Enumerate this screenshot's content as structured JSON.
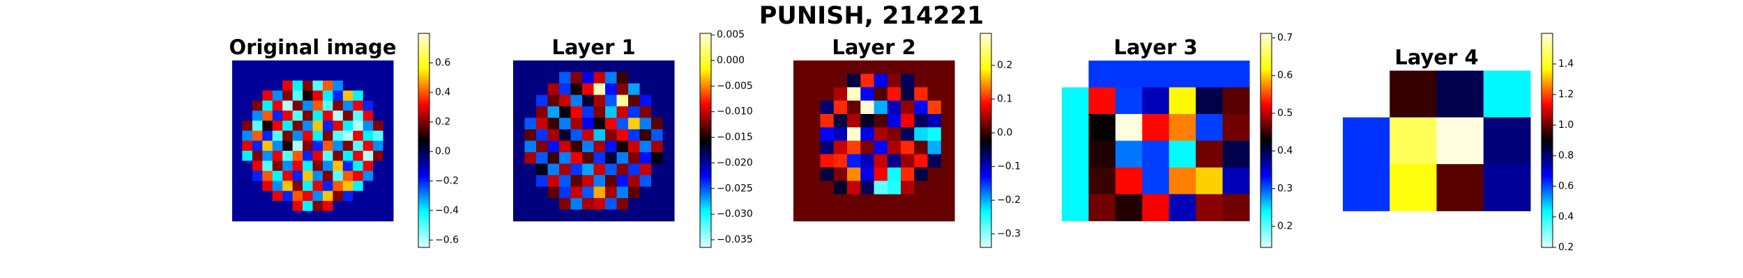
{
  "title": "PUNISH, 214221",
  "chart_data": [
    {
      "type": "heatmap",
      "title": "Original image",
      "colormap": [
        "#e0ffff",
        "#00ffff",
        "#0000ff",
        "#000000",
        "#ff0000",
        "#ffff00",
        "#ffffe0"
      ],
      "zlim": [
        -0.65,
        0.8
      ],
      "zticks": [
        {
          "value": -0.6,
          "label": "−0.6"
        },
        {
          "value": -0.4,
          "label": "−0.4"
        },
        {
          "value": -0.2,
          "label": "−0.2"
        },
        {
          "value": 0,
          "label": "0.0"
        },
        0.2,
        0.4,
        0.6
      ],
      "values": [
        [
          -0.07,
          -0.07,
          -0.07,
          -0.07,
          -0.07,
          -0.07,
          -0.07,
          -0.07,
          -0.07,
          -0.07,
          -0.07,
          -0.07,
          -0.07,
          -0.07,
          -0.07,
          -0.07
        ],
        [
          -0.07,
          -0.07,
          -0.07,
          -0.07,
          -0.07,
          -0.07,
          -0.07,
          -0.07,
          -0.07,
          -0.07,
          -0.07,
          -0.07,
          -0.07,
          -0.07,
          -0.07,
          -0.07
        ],
        [
          -0.07,
          -0.07,
          -0.07,
          -0.07,
          -0.07,
          0.3,
          -0.4,
          0.2,
          -0.5,
          0.4,
          -0.3,
          -0.07,
          -0.07,
          -0.07,
          -0.07,
          -0.07
        ],
        [
          -0.07,
          -0.07,
          -0.07,
          0.3,
          -0.3,
          0.2,
          -0.5,
          0.1,
          0.3,
          -0.4,
          -0.2,
          0.5,
          -0.4,
          -0.07,
          -0.07,
          -0.07
        ],
        [
          -0.07,
          -0.07,
          0.2,
          -0.4,
          0.3,
          -0.6,
          0.2,
          -0.3,
          0.4,
          -0.5,
          0.2,
          -0.3,
          0.3,
          -0.2,
          -0.07,
          -0.07
        ],
        [
          -0.07,
          -0.07,
          -0.3,
          0.4,
          -0.2,
          0.3,
          -0.5,
          0.2,
          -0.4,
          0.3,
          -0.6,
          0.2,
          -0.5,
          0.3,
          -0.07,
          -0.07
        ],
        [
          -0.07,
          0.2,
          -0.5,
          0.1,
          0.3,
          -0.4,
          0.2,
          -0.3,
          0.5,
          -0.2,
          0.3,
          -0.4,
          -0.6,
          -0.3,
          0.2,
          -0.07
        ],
        [
          -0.07,
          -0.3,
          0.4,
          -0.2,
          -0.5,
          0.2,
          -0.3,
          0.3,
          -0.4,
          0.2,
          -0.5,
          -0.6,
          0.3,
          -0.4,
          -0.5,
          -0.07
        ],
        [
          -0.07,
          0.3,
          -0.2,
          0.5,
          -0.3,
          0.1,
          -0.6,
          0.2,
          -0.2,
          0.4,
          -0.3,
          0.2,
          -0.5,
          0.3,
          -0.3,
          -0.07
        ],
        [
          -0.07,
          -0.4,
          0.2,
          -0.3,
          0.3,
          -0.5,
          0.4,
          -0.2,
          0.3,
          -0.5,
          0.2,
          -0.4,
          0.3,
          -0.6,
          0.2,
          -0.07
        ],
        [
          -0.07,
          -0.07,
          0.3,
          -0.5,
          0.2,
          -0.3,
          0.3,
          -0.4,
          0.2,
          -0.3,
          0.5,
          -0.2,
          -0.4,
          0.3,
          -0.07,
          -0.07
        ],
        [
          -0.07,
          -0.07,
          -0.2,
          0.4,
          -0.4,
          0.3,
          -0.2,
          0.5,
          -0.3,
          0.2,
          -0.5,
          0.4,
          0.3,
          -0.3,
          -0.07,
          -0.07
        ],
        [
          -0.07,
          -0.07,
          -0.07,
          0.3,
          -0.3,
          0.5,
          0.2,
          -0.4,
          0.3,
          -0.2,
          0.4,
          0.5,
          -0.4,
          -0.07,
          -0.07,
          -0.07
        ],
        [
          -0.07,
          -0.07,
          -0.07,
          -0.07,
          0.3,
          -0.2,
          0.4,
          0.3,
          -0.3,
          0.5,
          0.2,
          -0.2,
          -0.07,
          -0.07,
          -0.07,
          -0.07
        ],
        [
          -0.07,
          -0.07,
          -0.07,
          -0.07,
          -0.07,
          -0.07,
          0.3,
          -0.4,
          0.2,
          0.3,
          -0.07,
          -0.07,
          -0.07,
          -0.07,
          -0.07,
          -0.07
        ],
        [
          -0.07,
          -0.07,
          -0.07,
          -0.07,
          -0.07,
          -0.07,
          -0.07,
          -0.07,
          -0.07,
          -0.07,
          -0.07,
          -0.07,
          -0.07,
          -0.07,
          -0.07,
          -0.07
        ]
      ]
    },
    {
      "type": "heatmap",
      "title": "Layer 1",
      "colormap": [
        "#e0ffff",
        "#00ffff",
        "#0000ff",
        "#000000",
        "#ff0000",
        "#ffff00",
        "#ffffe0"
      ],
      "zlim": [
        -0.0365,
        0.0053
      ],
      "zticks": [
        {
          "value": -0.035,
          "label": "−0.035"
        },
        {
          "value": -0.03,
          "label": "−0.030"
        },
        {
          "value": -0.025,
          "label": "−0.025"
        },
        {
          "value": -0.02,
          "label": "−0.020"
        },
        {
          "value": -0.015,
          "label": "−0.015"
        },
        {
          "value": -0.01,
          "label": "−0.010"
        },
        {
          "value": -0.005,
          "label": "−0.005"
        },
        {
          "value": 0,
          "label": "0.000"
        },
        0.005
      ],
      "values": [
        [
          -0.019,
          -0.019,
          -0.019,
          -0.019,
          -0.019,
          -0.019,
          -0.019,
          -0.019,
          -0.019,
          -0.019,
          -0.019,
          -0.019,
          -0.019,
          -0.019
        ],
        [
          -0.019,
          -0.019,
          -0.019,
          -0.019,
          -0.025,
          -0.012,
          -0.022,
          -0.01,
          -0.026,
          -0.014,
          -0.019,
          -0.019,
          -0.019,
          -0.019
        ],
        [
          -0.019,
          -0.019,
          -0.019,
          -0.011,
          -0.024,
          -0.015,
          -0.009,
          0.004,
          -0.023,
          -0.012,
          -0.027,
          -0.019,
          -0.019,
          -0.019
        ],
        [
          -0.019,
          -0.019,
          -0.024,
          -0.013,
          -0.01,
          -0.026,
          -0.017,
          -0.011,
          -0.025,
          0.003,
          -0.013,
          -0.023,
          -0.019,
          -0.019
        ],
        [
          -0.019,
          -0.019,
          -0.012,
          -0.027,
          -0.016,
          -0.009,
          -0.024,
          -0.012,
          -0.028,
          -0.01,
          -0.024,
          -0.012,
          -0.019,
          -0.019
        ],
        [
          -0.019,
          -0.025,
          -0.01,
          -0.014,
          -0.026,
          -0.011,
          -0.022,
          -0.016,
          -0.009,
          -0.025,
          -0.003,
          -0.026,
          -0.013,
          -0.019
        ],
        [
          -0.019,
          -0.013,
          -0.024,
          -0.011,
          -0.017,
          -0.025,
          -0.01,
          -0.028,
          -0.012,
          -0.009,
          -0.024,
          -0.014,
          -0.025,
          -0.019
        ],
        [
          -0.019,
          -0.026,
          -0.012,
          -0.023,
          -0.01,
          -0.014,
          -0.026,
          -0.011,
          -0.023,
          -0.015,
          -0.01,
          -0.026,
          -0.011,
          -0.019
        ],
        [
          -0.019,
          -0.011,
          -0.025,
          -0.014,
          -0.026,
          -0.009,
          -0.013,
          -0.024,
          -0.017,
          -0.026,
          -0.012,
          -0.023,
          -0.016,
          -0.019
        ],
        [
          -0.019,
          -0.019,
          -0.016,
          -0.026,
          -0.011,
          -0.024,
          -0.027,
          -0.01,
          -0.025,
          -0.012,
          -0.024,
          -0.01,
          -0.019,
          -0.019
        ],
        [
          -0.019,
          -0.019,
          -0.024,
          -0.01,
          -0.025,
          -0.013,
          -0.01,
          -0.026,
          -0.013,
          -0.023,
          -0.011,
          -0.025,
          -0.019,
          -0.019
        ],
        [
          -0.019,
          -0.019,
          -0.019,
          -0.013,
          -0.024,
          -0.01,
          -0.025,
          -0.004,
          -0.011,
          -0.026,
          -0.013,
          -0.019,
          -0.019,
          -0.019
        ],
        [
          -0.019,
          -0.019,
          -0.019,
          -0.019,
          -0.012,
          -0.026,
          -0.011,
          -0.01,
          -0.025,
          -0.012,
          -0.019,
          -0.019,
          -0.019,
          -0.019
        ],
        [
          -0.019,
          -0.019,
          -0.019,
          -0.019,
          -0.019,
          -0.019,
          -0.019,
          -0.019,
          -0.019,
          -0.019,
          -0.019,
          -0.019,
          -0.019,
          -0.019
        ]
      ]
    },
    {
      "type": "heatmap",
      "title": "Layer 2",
      "colormap": [
        "#e0ffff",
        "#00ffff",
        "#0000ff",
        "#000000",
        "#ff0000",
        "#ffff00",
        "#ffffe0"
      ],
      "zlim": [
        -0.34,
        0.295
      ],
      "zticks": [
        {
          "value": -0.3,
          "label": "−0.3"
        },
        {
          "value": -0.2,
          "label": "−0.2"
        },
        {
          "value": -0.1,
          "label": "−0.1"
        },
        {
          "value": 0,
          "label": "0.0"
        },
        0.1,
        0.2
      ],
      "values": [
        [
          0.02,
          0.02,
          0.02,
          0.02,
          0.02,
          0.02,
          0.02,
          0.02,
          0.02,
          0.02,
          0.02,
          0.02
        ],
        [
          0.02,
          0.02,
          0.02,
          0.02,
          -0.05,
          0.1,
          -0.12,
          0.03,
          -0.06,
          0.02,
          0.02,
          0.02
        ],
        [
          0.02,
          0.02,
          0.02,
          0.05,
          0.28,
          -0.13,
          0.01,
          0.09,
          -0.05,
          0.1,
          0.02,
          0.02
        ],
        [
          0.02,
          0.02,
          -0.07,
          0.1,
          0.02,
          0.29,
          -0.2,
          -0.1,
          0.04,
          -0.13,
          0.11,
          0.02
        ],
        [
          0.02,
          0.02,
          0.1,
          -0.05,
          0.05,
          -0.04,
          0.01,
          -0.12,
          0.08,
          -0.06,
          -0.1,
          0.02
        ],
        [
          0.02,
          0.02,
          -0.13,
          -0.1,
          0.29,
          -0.12,
          0.05,
          0.03,
          -0.06,
          -0.22,
          -0.24,
          0.02
        ],
        [
          0.02,
          0.02,
          -0.07,
          0.06,
          0.11,
          0.03,
          -0.13,
          0.05,
          0.1,
          0.02,
          -0.2,
          0.02
        ],
        [
          0.02,
          0.02,
          0.09,
          0.1,
          -0.14,
          -0.1,
          0.06,
          -0.08,
          0.04,
          0.09,
          -0.06,
          0.02
        ],
        [
          0.02,
          0.02,
          -0.05,
          0.03,
          0.14,
          -0.12,
          0.08,
          -0.24,
          0.1,
          -0.05,
          0.02,
          0.02
        ],
        [
          0.02,
          0.02,
          0.02,
          -0.04,
          0.06,
          -0.06,
          -0.28,
          -0.25,
          0.05,
          0.02,
          0.02,
          0.02
        ],
        [
          0.02,
          0.02,
          0.02,
          0.02,
          0.02,
          0.02,
          0.02,
          0.02,
          0.02,
          0.02,
          0.02,
          0.02
        ],
        [
          0.02,
          0.02,
          0.02,
          0.02,
          0.02,
          0.02,
          0.02,
          0.02,
          0.02,
          0.02,
          0.02,
          0.02
        ]
      ]
    },
    {
      "type": "heatmap",
      "title": "Layer 3",
      "colormap": [
        "#e0ffff",
        "#00ffff",
        "#0000ff",
        "#000000",
        "#ff0000",
        "#ffff00",
        "#ffffe0"
      ],
      "zlim": [
        0.144,
        0.712
      ],
      "zticks": [
        0.2,
        0.3,
        0.4,
        0.5,
        0.6,
        0.7
      ],
      "values": [
        [
          null,
          0.314,
          0.314,
          0.314,
          0.314,
          0.314,
          0.314
        ],
        [
          0.24,
          0.525,
          0.31,
          0.36,
          0.615,
          0.4,
          0.46
        ],
        [
          0.24,
          0.43,
          0.712,
          0.525,
          0.57,
          0.31,
          0.47
        ],
        [
          0.24,
          0.44,
          0.29,
          0.31,
          0.24,
          0.47,
          0.4
        ],
        [
          0.24,
          0.45,
          0.525,
          0.31,
          0.57,
          0.6,
          0.36
        ],
        [
          0.24,
          0.47,
          0.44,
          0.52,
          0.36,
          0.48,
          0.47
        ]
      ]
    },
    {
      "type": "heatmap",
      "title": "Layer 4",
      "colormap": [
        "#e0ffff",
        "#00ffff",
        "#0000ff",
        "#000000",
        "#ff0000",
        "#ffff00",
        "#ffffe0"
      ],
      "zlim": [
        0.2,
        1.6
      ],
      "zticks": [
        0.2,
        0.4,
        0.6,
        0.8,
        {
          "value": 1,
          "label": "1.0"
        },
        1.2,
        1.4
      ],
      "values": [
        [
          null,
          0.95,
          0.83,
          0.44
        ],
        [
          0.62,
          1.46,
          1.6,
          0.79
        ],
        [
          0.62,
          1.38,
          0.98,
          0.76
        ]
      ]
    }
  ]
}
